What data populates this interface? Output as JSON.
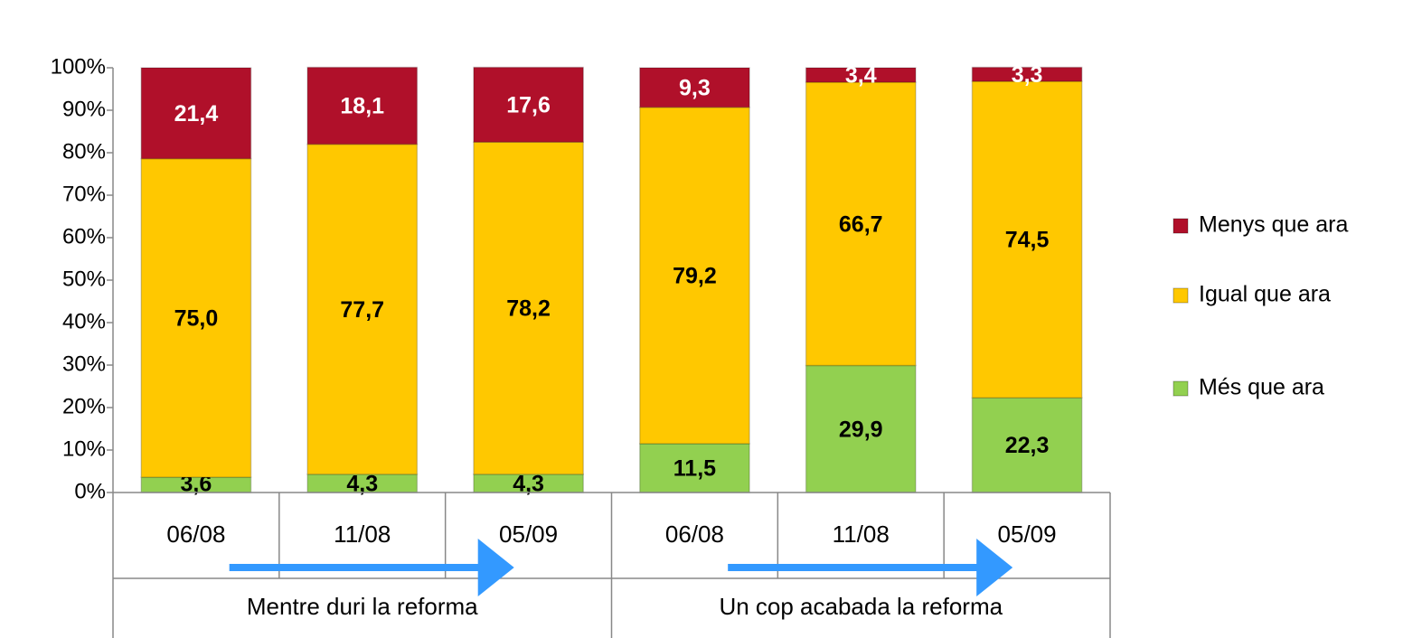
{
  "chart_data": {
    "type": "stacked_bar",
    "categories": [
      "06/08",
      "11/08",
      "05/09",
      "06/08",
      "11/08",
      "05/09"
    ],
    "groups": [
      {
        "label": "Mentre duri la reforma",
        "count": 3
      },
      {
        "label": "Un cop acabada la reforma",
        "count": 3
      }
    ],
    "series": [
      {
        "name": "Més que ara",
        "color": "#92d050",
        "label_color": "#000000",
        "values": [
          3.6,
          4.3,
          4.3,
          11.5,
          29.9,
          22.3
        ],
        "value_labels": [
          "3,6",
          "4,3",
          "4,3",
          "11,5",
          "29,9",
          "22,3"
        ]
      },
      {
        "name": "Igual que ara",
        "color": "#ffc800",
        "label_color": "#000000",
        "values": [
          75.0,
          77.7,
          78.2,
          79.2,
          66.7,
          74.5
        ],
        "value_labels": [
          "75,0",
          "77,7",
          "78,2",
          "79,2",
          "66,7",
          "74,5"
        ]
      },
      {
        "name": "Menys que ara",
        "color": "#b0102a",
        "label_color": "#ffffff",
        "values": [
          21.4,
          18.1,
          17.6,
          9.3,
          3.4,
          3.3
        ],
        "value_labels": [
          "21,4",
          "18,1",
          "17,6",
          "9,3",
          "3,4",
          "3,3"
        ]
      }
    ],
    "ylim": [
      0,
      100
    ],
    "yticks": [
      {
        "value": 0,
        "label": "0%"
      },
      {
        "value": 10,
        "label": "10%"
      },
      {
        "value": 20,
        "label": "20%"
      },
      {
        "value": 30,
        "label": "30%"
      },
      {
        "value": 40,
        "label": "40%"
      },
      {
        "value": 50,
        "label": "50%"
      },
      {
        "value": 60,
        "label": "60%"
      },
      {
        "value": 70,
        "label": "70%"
      },
      {
        "value": 80,
        "label": "80%"
      },
      {
        "value": 90,
        "label": "90%"
      },
      {
        "value": 100,
        "label": "100%"
      }
    ],
    "legend": "right"
  }
}
